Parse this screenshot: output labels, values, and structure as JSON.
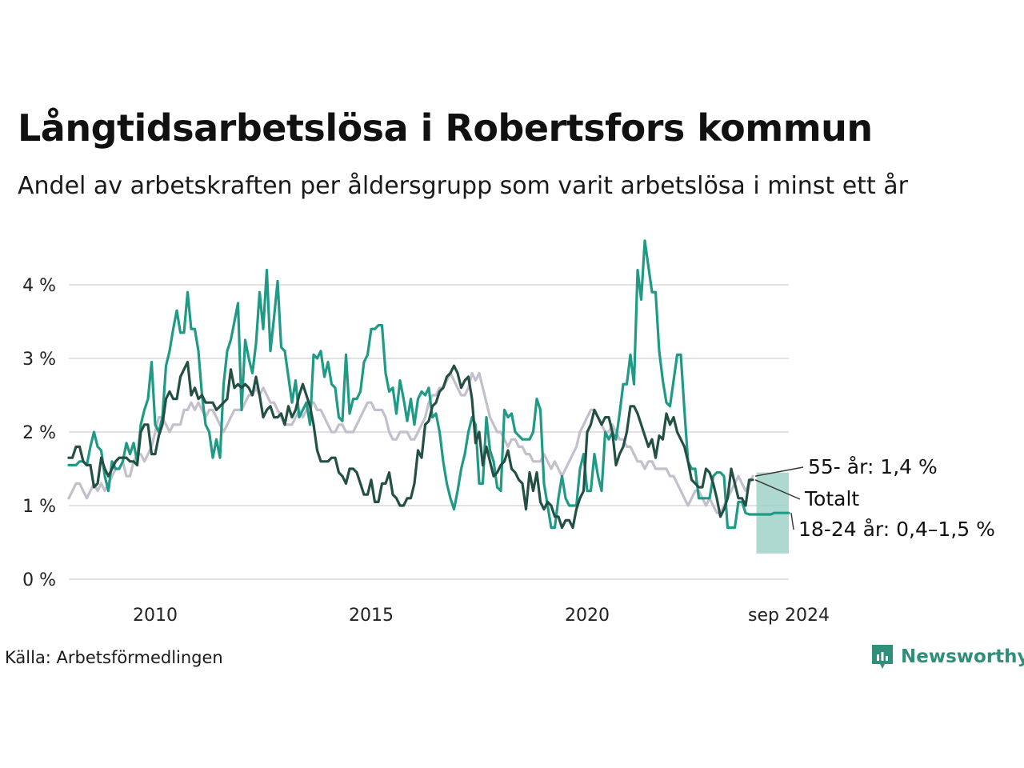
{
  "title": "Långtidsarbetslösa i Robertsfors kommun",
  "subtitle": "Andel av arbetskraften per åldersgrupp som varit arbetslösa i minst ett år",
  "source": "Källa: Arbetsförmedlingen",
  "brand": "Newsworthy",
  "colors": {
    "young": "#1f9a85",
    "total": "#234f45",
    "old": "#c3bfcc",
    "band": "#9fd2c8",
    "grid": "#e2e2e2",
    "brand": "#2f8f7b"
  },
  "chart_data": {
    "type": "line",
    "x_start": "2008-01",
    "x_end": "2024-09",
    "ylim": [
      0,
      4.6
    ],
    "yticks": [
      0,
      1,
      2,
      3,
      4
    ],
    "ytick_labels": [
      "0 %",
      "1 %",
      "2 %",
      "3 %",
      "4 %"
    ],
    "xticks": [
      "2010-01",
      "2015-01",
      "2020-01",
      "2024-09"
    ],
    "xtick_labels": [
      "2010",
      "2015",
      "2020",
      "sep 2024"
    ],
    "grid": true,
    "series": [
      {
        "key": "old",
        "name": "55- år",
        "label": "55- år: 1,4 %",
        "x_start": "2008-01",
        "values": [
          1.1,
          1.2,
          1.3,
          1.3,
          1.2,
          1.1,
          1.2,
          1.3,
          1.2,
          1.3,
          1.2,
          1.3,
          1.4,
          1.5,
          1.5,
          1.6,
          1.4,
          1.4,
          1.6,
          1.7,
          1.7,
          1.6,
          1.7,
          1.8,
          2.0,
          2.2,
          2.2,
          2.1,
          2.0,
          2.1,
          2.1,
          2.1,
          2.3,
          2.3,
          2.4,
          2.3,
          2.4,
          2.3,
          2.2,
          2.3,
          2.3,
          2.2,
          2.1,
          2.0,
          2.1,
          2.2,
          2.3,
          2.3,
          2.3,
          2.4,
          2.5,
          2.5,
          2.6,
          2.5,
          2.6,
          2.5,
          2.4,
          2.4,
          2.3,
          2.2,
          2.1,
          2.1,
          2.1,
          2.2,
          2.3,
          2.2,
          2.3,
          2.4,
          2.4,
          2.3,
          2.3,
          2.2,
          2.1,
          2.0,
          2.0,
          2.1,
          2.1,
          2.0,
          2.0,
          2.0,
          2.1,
          2.2,
          2.3,
          2.4,
          2.4,
          2.3,
          2.3,
          2.3,
          2.2,
          2.0,
          1.9,
          1.9,
          2.0,
          2.0,
          2.0,
          1.9,
          1.9,
          2.0,
          2.1,
          2.2,
          2.4,
          2.5,
          2.5,
          2.6,
          2.6,
          2.7,
          2.8,
          2.7,
          2.6,
          2.5,
          2.5,
          2.6,
          2.8,
          2.7,
          2.8,
          2.6,
          2.4,
          2.2,
          2.1,
          2.0,
          2.0,
          1.9,
          1.8,
          1.9,
          1.9,
          1.8,
          1.8,
          1.7,
          1.7,
          1.6,
          1.6,
          1.6,
          1.7,
          1.6,
          1.5,
          1.6,
          1.5,
          1.4,
          1.5,
          1.6,
          1.7,
          1.8,
          2.0,
          2.1,
          2.2,
          2.3,
          2.3,
          2.2,
          2.1,
          2.0,
          2.0,
          2.1,
          2.0,
          1.9,
          1.9,
          1.8,
          1.8,
          1.7,
          1.6,
          1.6,
          1.5,
          1.6,
          1.6,
          1.5,
          1.5,
          1.5,
          1.5,
          1.4,
          1.4,
          1.3,
          1.2,
          1.1,
          1.0,
          1.1,
          1.2,
          1.2,
          1.1,
          1.0,
          1.1,
          1.0,
          0.9,
          0.9,
          1.0,
          1.1,
          1.2,
          1.3,
          1.4,
          1.3,
          1.2,
          1.3,
          1.4
        ]
      },
      {
        "key": "young",
        "name": "18-24 år",
        "label": "18-24 år: 0,4–1,5 %",
        "x_start": "2008-01",
        "values": [
          1.55,
          1.55,
          1.55,
          1.6,
          1.6,
          1.55,
          1.8,
          2.0,
          1.8,
          1.75,
          1.4,
          1.2,
          1.6,
          1.5,
          1.5,
          1.6,
          1.85,
          1.7,
          1.85,
          1.6,
          2.1,
          2.3,
          2.45,
          2.95,
          2.1,
          2.0,
          2.2,
          2.9,
          3.1,
          3.4,
          3.65,
          3.35,
          3.35,
          3.9,
          3.4,
          3.4,
          3.1,
          2.5,
          2.1,
          2.0,
          1.65,
          1.9,
          1.65,
          2.65,
          3.1,
          3.25,
          3.5,
          3.75,
          2.3,
          3.25,
          3.0,
          2.8,
          3.2,
          3.9,
          3.4,
          4.2,
          3.1,
          3.55,
          4.05,
          3.15,
          3.1,
          2.75,
          2.4,
          2.7,
          2.2,
          2.3,
          2.4,
          2.1,
          3.05,
          3.0,
          3.1,
          2.75,
          2.95,
          2.65,
          2.6,
          2.2,
          2.15,
          3.05,
          2.25,
          2.45,
          2.45,
          2.55,
          2.95,
          3.05,
          3.4,
          3.4,
          3.45,
          3.45,
          2.8,
          2.55,
          2.6,
          2.25,
          2.7,
          2.45,
          2.15,
          2.45,
          2.1,
          2.45,
          2.55,
          2.5,
          2.6,
          2.2,
          2.25,
          2.0,
          1.6,
          1.3,
          1.1,
          0.95,
          1.2,
          1.5,
          1.7,
          2.0,
          2.2,
          2.1,
          1.3,
          1.3,
          2.2,
          1.75,
          1.6,
          1.25,
          1.2,
          2.3,
          2.2,
          2.25,
          2.0,
          1.95,
          1.9,
          1.9,
          1.9,
          2.0,
          2.45,
          2.3,
          1.3,
          1.0,
          0.7,
          0.7,
          1.1,
          1.4,
          1.1,
          1.0,
          1.0,
          1.0,
          1.5,
          1.7,
          1.2,
          1.2,
          1.7,
          1.4,
          1.2,
          2.0,
          1.9,
          2.0,
          1.9,
          2.25,
          2.65,
          2.65,
          3.05,
          2.65,
          4.2,
          3.8,
          4.6,
          4.25,
          3.9,
          3.9,
          3.1,
          2.7,
          2.4,
          2.35,
          2.7,
          3.05,
          3.05,
          2.3,
          1.6,
          1.5,
          1.5,
          1.1,
          1.1,
          1.1,
          1.1,
          1.4,
          1.45,
          1.45,
          1.4,
          0.7,
          0.7,
          0.7,
          1.05,
          1.05,
          0.9,
          0.88,
          0.88,
          0.88,
          0.88,
          0.88,
          0.88,
          0.88,
          0.9,
          0.9,
          0.9,
          0.9,
          0.9
        ]
      },
      {
        "key": "total",
        "name": "Totalt",
        "label": "Totalt",
        "x_start": "2008-01",
        "values": [
          1.65,
          1.65,
          1.8,
          1.8,
          1.6,
          1.55,
          1.55,
          1.25,
          1.3,
          1.65,
          1.5,
          1.4,
          1.5,
          1.6,
          1.65,
          1.65,
          1.65,
          1.6,
          1.6,
          1.55,
          2.0,
          2.1,
          2.1,
          1.7,
          1.7,
          1.95,
          2.1,
          2.45,
          2.55,
          2.45,
          2.45,
          2.75,
          2.85,
          2.95,
          2.5,
          2.6,
          2.45,
          2.5,
          2.4,
          2.4,
          2.4,
          2.3,
          2.35,
          2.4,
          2.45,
          2.85,
          2.6,
          2.65,
          2.6,
          2.65,
          2.6,
          2.5,
          2.75,
          2.5,
          2.2,
          2.3,
          2.35,
          2.2,
          2.2,
          2.25,
          2.1,
          2.35,
          2.2,
          2.3,
          2.5,
          2.65,
          2.5,
          2.35,
          2.1,
          1.75,
          1.6,
          1.6,
          1.6,
          1.65,
          1.65,
          1.45,
          1.4,
          1.3,
          1.5,
          1.5,
          1.45,
          1.3,
          1.15,
          1.15,
          1.35,
          1.05,
          1.05,
          1.3,
          1.3,
          1.45,
          1.15,
          1.1,
          1.0,
          1.0,
          1.1,
          1.1,
          1.3,
          1.75,
          1.65,
          2.1,
          2.15,
          2.35,
          2.4,
          2.55,
          2.6,
          2.75,
          2.8,
          2.9,
          2.8,
          2.6,
          2.7,
          2.75,
          2.45,
          1.85,
          2.0,
          1.55,
          1.8,
          1.6,
          1.4,
          1.45,
          1.55,
          1.6,
          1.75,
          1.5,
          1.45,
          1.35,
          1.3,
          0.95,
          1.45,
          1.2,
          1.45,
          1.05,
          0.95,
          1.05,
          1.0,
          0.85,
          0.85,
          0.7,
          0.8,
          0.8,
          0.7,
          0.95,
          1.1,
          1.2,
          2.0,
          2.1,
          2.3,
          2.2,
          2.1,
          2.2,
          2.2,
          2.0,
          1.55,
          1.7,
          1.8,
          2.0,
          2.35,
          2.35,
          2.25,
          2.1,
          1.95,
          1.8,
          1.9,
          1.65,
          1.95,
          1.9,
          2.25,
          2.1,
          2.2,
          2.0,
          1.9,
          1.8,
          1.6,
          1.35,
          1.3,
          1.25,
          1.25,
          1.5,
          1.45,
          1.3,
          1.1,
          0.85,
          0.95,
          1.1,
          1.5,
          1.3,
          1.1,
          1.1,
          1.0,
          1.35,
          1.35
        ]
      }
    ],
    "band": {
      "series": "18-24 år",
      "x_from": "2023-12",
      "x_to": "2024-09",
      "low": 0.35,
      "high": 1.45
    },
    "end_labels": [
      "55- år: 1,4 %",
      "Totalt",
      "18-24 år: 0,4–1,5 %"
    ]
  }
}
